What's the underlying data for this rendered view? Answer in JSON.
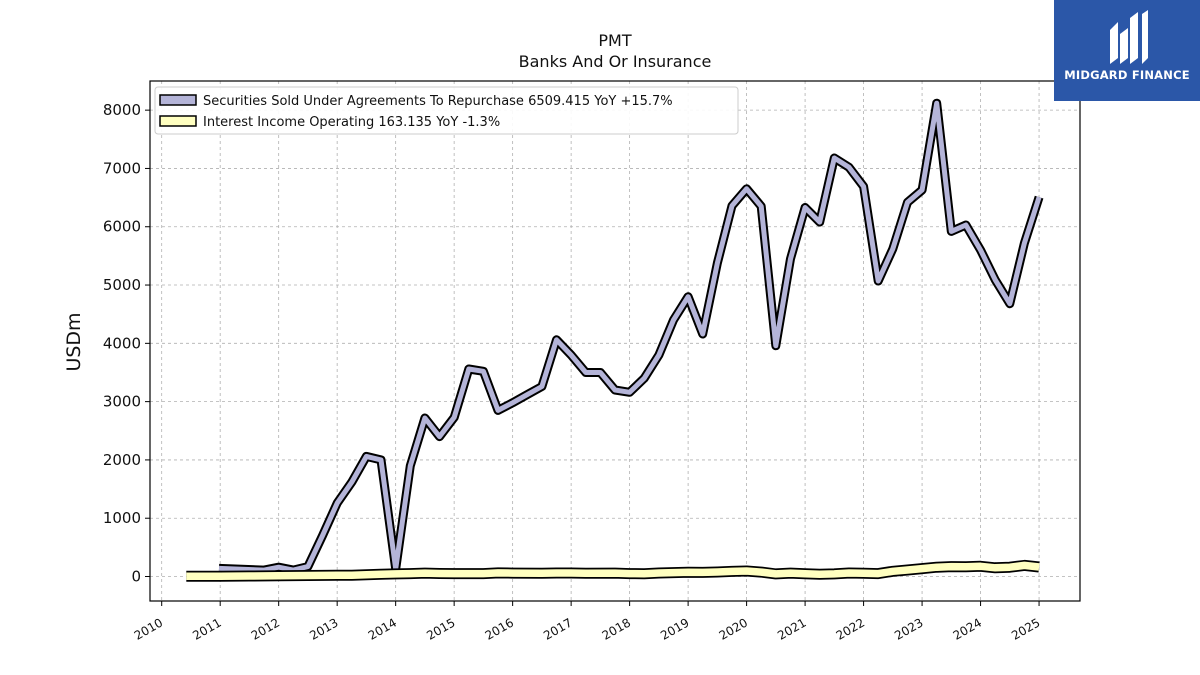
{
  "chart_data": {
    "type": "line",
    "title": "PMT",
    "subtitle": "Banks And Or Insurance",
    "xlabel": "",
    "ylabel": "USDm",
    "xlim": [
      2009.8,
      2025.7
    ],
    "ylim": [
      -420,
      8500
    ],
    "yticks": [
      0,
      1000,
      2000,
      3000,
      4000,
      5000,
      6000,
      7000,
      8000
    ],
    "xticks": [
      2010,
      2011,
      2012,
      2013,
      2014,
      2015,
      2016,
      2017,
      2018,
      2019,
      2020,
      2021,
      2022,
      2023,
      2024,
      2025
    ],
    "grid": true,
    "legend_position": "top-left",
    "series": [
      {
        "name": "Securities Sold Under Agreements To Repurchase",
        "legend_label": "Securities Sold Under Agreements To Repurchase  6509.415 YoY +15.7%",
        "color": "#b4b4d8",
        "x": [
          2010.98,
          2011.75,
          2012.0,
          2012.25,
          2012.5,
          2012.75,
          2013.0,
          2013.25,
          2013.5,
          2013.75,
          2014.0,
          2014.25,
          2014.5,
          2014.75,
          2015.0,
          2015.25,
          2015.5,
          2015.75,
          2016.0,
          2016.25,
          2016.5,
          2016.75,
          2017.0,
          2017.25,
          2017.5,
          2017.75,
          2018.0,
          2018.25,
          2018.5,
          2018.75,
          2019.0,
          2019.25,
          2019.5,
          2019.75,
          2020.0,
          2020.25,
          2020.5,
          2020.75,
          2021.0,
          2021.25,
          2021.5,
          2021.75,
          2022.0,
          2022.25,
          2022.5,
          2022.75,
          2023.0,
          2023.25,
          2023.5,
          2023.75,
          2024.0,
          2024.25,
          2024.5,
          2024.75,
          2025.0
        ],
        "values": [
          140,
          110,
          160,
          110,
          170,
          700,
          1260,
          1620,
          2060,
          2000,
          130,
          1900,
          2720,
          2400,
          2730,
          3560,
          3520,
          2850,
          2980,
          3120,
          3260,
          4060,
          3800,
          3500,
          3500,
          3200,
          3160,
          3400,
          3800,
          4400,
          4800,
          4160,
          5380,
          6360,
          6650,
          6350,
          3960,
          5450,
          6330,
          6080,
          7180,
          7020,
          6690,
          5070,
          5620,
          6420,
          6630,
          8120,
          5920,
          6030,
          5600,
          5090,
          4680,
          5720,
          6509
        ]
      },
      {
        "name": "Interest Income Operating",
        "legend_label": "Interest Income Operating  163.135 YoY -1.3%",
        "color": "#ffffc0",
        "x": [
          2010.42,
          2010.75,
          2011.0,
          2011.5,
          2012.0,
          2012.5,
          2013.0,
          2013.25,
          2013.5,
          2013.75,
          2014.0,
          2014.25,
          2014.5,
          2014.75,
          2015.0,
          2015.5,
          2015.75,
          2016.0,
          2016.5,
          2016.75,
          2017.0,
          2017.25,
          2017.75,
          2018.0,
          2018.25,
          2018.5,
          2018.75,
          2019.0,
          2019.25,
          2019.5,
          2019.75,
          2020.0,
          2020.25,
          2020.5,
          2020.75,
          2021.0,
          2021.25,
          2021.5,
          2021.75,
          2022.0,
          2022.25,
          2022.5,
          2022.75,
          2023.0,
          2023.25,
          2023.5,
          2023.75,
          2024.0,
          2024.25,
          2024.5,
          2024.75,
          2025.0
        ],
        "values": [
          5,
          5,
          6,
          8,
          12,
          18,
          22,
          20,
          30,
          38,
          45,
          50,
          58,
          52,
          50,
          50,
          62,
          58,
          55,
          60,
          60,
          55,
          58,
          50,
          48,
          60,
          68,
          72,
          70,
          78,
          88,
          95,
          75,
          45,
          58,
          48,
          40,
          45,
          60,
          55,
          50,
          90,
          112,
          135,
          160,
          170,
          168,
          175,
          150,
          160,
          190,
          163
        ]
      }
    ]
  },
  "logo": {
    "text": "MIDGARD FINANCE",
    "bg_color": "#2b57a8",
    "icon": "midgard-logo-icon"
  }
}
